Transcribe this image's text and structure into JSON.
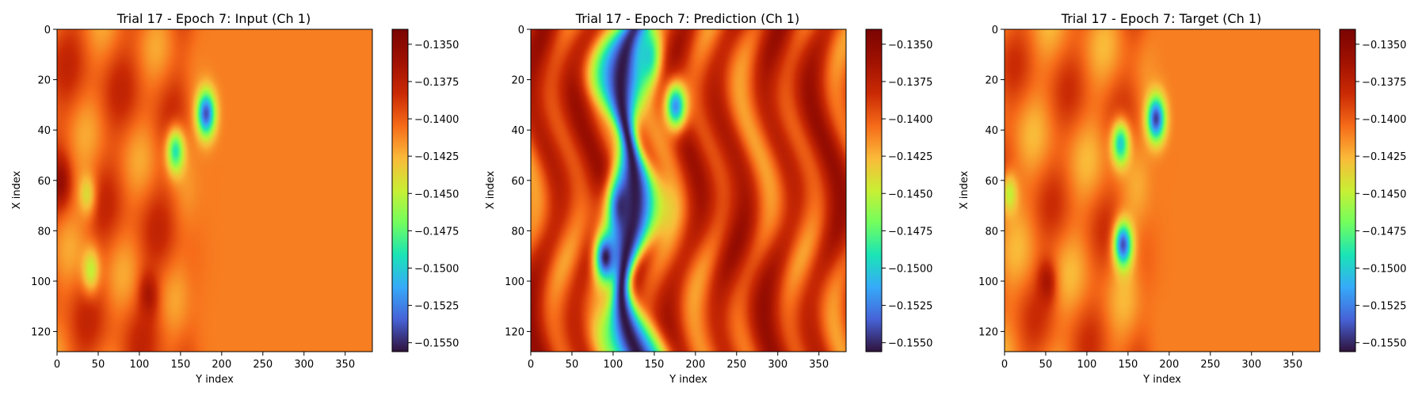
{
  "chart_data": [
    {
      "type": "heatmap",
      "title": "Trial 17 - Epoch 7: Input (Ch 1)",
      "xlabel": "Y index",
      "ylabel": "X index",
      "xlim": [
        0,
        383
      ],
      "ylim": [
        128,
        0
      ],
      "xticks": [
        "0",
        "50",
        "100",
        "150",
        "200",
        "250",
        "300",
        "350"
      ],
      "yticks": [
        "0",
        "20",
        "40",
        "60",
        "80",
        "100",
        "120"
      ],
      "colormap": "turbo",
      "vmin": -0.1556,
      "vmax": -0.134,
      "colorbar_ticks": [
        "−0.1350",
        "−0.1375",
        "−0.1400",
        "−0.1425",
        "−0.1450",
        "−0.1475",
        "−0.1500",
        "−0.1525",
        "−0.1550"
      ],
      "field": {
        "left_region_value": -0.14,
        "right_region_value": -0.141,
        "front_col": 160,
        "anomalies": [
          {
            "x": 33,
            "y": 180,
            "value": -0.154
          },
          {
            "x": 48,
            "y": 143,
            "value": -0.149
          },
          {
            "x": 65,
            "y": 35,
            "value": -0.144
          },
          {
            "x": 95,
            "y": 40,
            "value": -0.145
          },
          {
            "x": 60,
            "y": 3,
            "value": -0.1355
          },
          {
            "x": 105,
            "y": 110,
            "value": -0.1365
          }
        ]
      }
    },
    {
      "type": "heatmap",
      "title": "Trial 17 - Epoch 7: Prediction (Ch 1)",
      "xlabel": "Y index",
      "ylabel": "X index",
      "xlim": [
        0,
        383
      ],
      "ylim": [
        128,
        0
      ],
      "xticks": [
        "0",
        "50",
        "100",
        "150",
        "200",
        "250",
        "300",
        "350"
      ],
      "yticks": [
        "0",
        "20",
        "40",
        "60",
        "80",
        "100",
        "120"
      ],
      "colormap": "turbo",
      "vmin": -0.1556,
      "vmax": -0.134,
      "colorbar_ticks": [
        "−0.1350",
        "−0.1375",
        "−0.1400",
        "−0.1425",
        "−0.1450",
        "−0.1475",
        "−0.1500",
        "−0.1525",
        "−0.1550"
      ],
      "field": {
        "background_range": [
          -0.142,
          -0.1355
        ],
        "low_band_center_y": 125,
        "low_band_value": -0.1555,
        "anomalies": [
          {
            "x": 90,
            "y": 90,
            "value": -0.1555
          },
          {
            "x": 70,
            "y": 110,
            "value": -0.155
          },
          {
            "x": 30,
            "y": 175,
            "value": -0.152
          },
          {
            "x": 10,
            "y": 140,
            "value": -0.15
          }
        ]
      }
    },
    {
      "type": "heatmap",
      "title": "Trial 17 - Epoch 7: Target (Ch 1)",
      "xlabel": "Y index",
      "ylabel": "X index",
      "xlim": [
        0,
        383
      ],
      "ylim": [
        128,
        0
      ],
      "xticks": [
        "0",
        "50",
        "100",
        "150",
        "200",
        "250",
        "300",
        "350"
      ],
      "yticks": [
        "0",
        "20",
        "40",
        "60",
        "80",
        "100",
        "120"
      ],
      "colormap": "turbo",
      "vmin": -0.1556,
      "vmax": -0.134,
      "colorbar_ticks": [
        "−0.1350",
        "−0.1375",
        "−0.1400",
        "−0.1425",
        "−0.1450",
        "−0.1475",
        "−0.1500",
        "−0.1525",
        "−0.1550"
      ],
      "field": {
        "left_region_value": -0.1405,
        "right_region_value": -0.141,
        "front_col": 170,
        "anomalies": [
          {
            "x": 45,
            "y": 140,
            "value": -0.15
          },
          {
            "x": 35,
            "y": 183,
            "value": -0.1545
          },
          {
            "x": 85,
            "y": 143,
            "value": -0.154
          },
          {
            "x": 65,
            "y": 5,
            "value": -0.145
          },
          {
            "x": 100,
            "y": 50,
            "value": -0.1365
          }
        ]
      }
    }
  ]
}
